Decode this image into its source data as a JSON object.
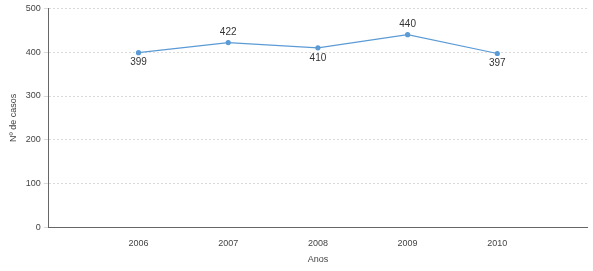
{
  "chart_data": {
    "type": "line",
    "x": [
      2006,
      2007,
      2008,
      2009,
      2010
    ],
    "values": [
      399,
      422,
      410,
      440,
      397
    ],
    "color": "#5b9bd5",
    "marker": "circle",
    "xlabel": "Anos",
    "ylabel": "Nº de casos",
    "xlim": [
      2005,
      2011
    ],
    "xticks": [
      2006,
      2007,
      2008,
      2009,
      2010
    ],
    "ylim": [
      0,
      500
    ],
    "yticks": [
      0,
      100,
      200,
      300,
      400,
      500
    ],
    "grid": true,
    "data_labels": true
  }
}
